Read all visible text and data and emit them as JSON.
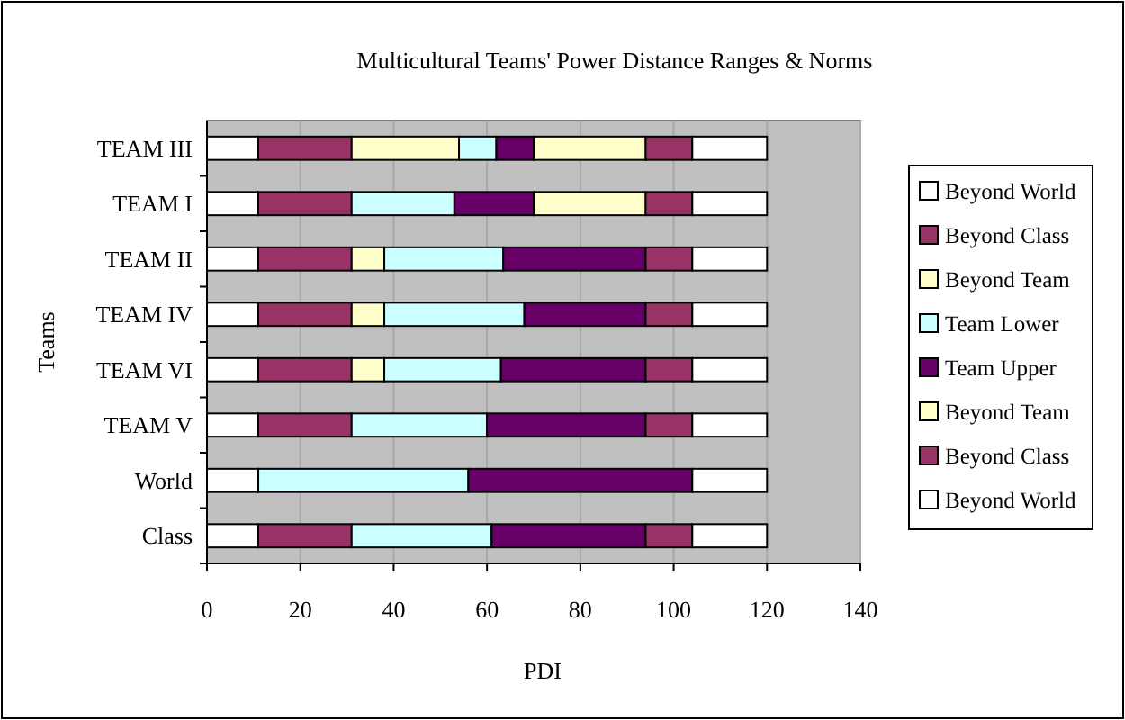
{
  "chart_data": {
    "type": "bar",
    "orientation": "horizontal",
    "stacked": true,
    "title": "Multicultural Teams' Power Distance Ranges & Norms",
    "xlabel": "PDI",
    "ylabel": "Teams",
    "categories": [
      "TEAM III",
      "TEAM I",
      "TEAM II",
      "TEAM IV",
      "TEAM VI",
      "TEAM V",
      "World",
      "Class"
    ],
    "series": [
      {
        "name": "Beyond World",
        "color": "#ffffff",
        "values": [
          11,
          11,
          11,
          11,
          11,
          11,
          11,
          11
        ]
      },
      {
        "name": "Beyond Class",
        "color": "#993366",
        "values": [
          20,
          20,
          20,
          20,
          20,
          20,
          0,
          20
        ]
      },
      {
        "name": "Beyond Team",
        "color": "#ffffcc",
        "values": [
          23,
          0,
          7,
          7,
          7,
          0,
          0,
          0
        ]
      },
      {
        "name": "Team Lower",
        "color": "#ccffff",
        "values": [
          8,
          22,
          25.5,
          30,
          25,
          29,
          45,
          30
        ]
      },
      {
        "name": "Team Upper",
        "color": "#660066",
        "values": [
          8,
          17,
          30.5,
          26,
          31,
          34,
          48,
          33
        ]
      },
      {
        "name": "Beyond Team",
        "color": "#ffffcc",
        "values": [
          24,
          24,
          0,
          0,
          0,
          0,
          0,
          0
        ]
      },
      {
        "name": "Beyond Class",
        "color": "#993366",
        "values": [
          10,
          10,
          10,
          10,
          10,
          10,
          0,
          10
        ]
      },
      {
        "name": "Beyond World",
        "color": "#ffffff",
        "values": [
          16,
          16,
          16,
          16,
          16,
          16,
          16,
          16
        ]
      }
    ],
    "xlim": [
      0,
      140
    ],
    "xticks": [
      0,
      20,
      40,
      60,
      80,
      100,
      120,
      140
    ],
    "grid": "x",
    "legend": "right"
  }
}
